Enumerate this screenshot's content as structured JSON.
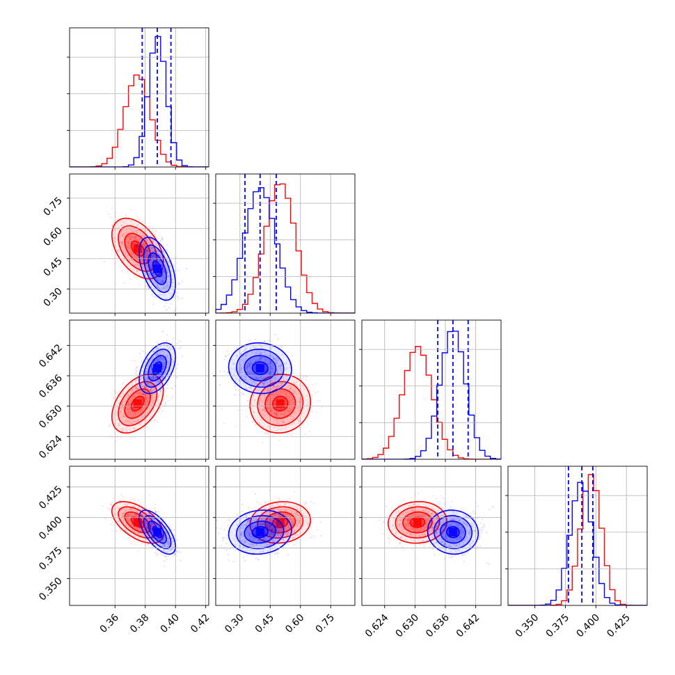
{
  "chart_data": {
    "type": "corner",
    "parameters": [
      "",
      "",
      "",
      ""
    ],
    "ranges": [
      [
        0.33,
        0.422
      ],
      [
        0.18,
        0.87
      ],
      [
        0.6195,
        0.647
      ],
      [
        0.328,
        0.442
      ]
    ],
    "ticks": [
      [
        0.36,
        0.38,
        0.4,
        0.42
      ],
      [
        0.3,
        0.45,
        0.6,
        0.75
      ],
      [
        0.624,
        0.63,
        0.636,
        0.642
      ],
      [
        0.35,
        0.375,
        0.4,
        0.425
      ]
    ],
    "tick_labels": [
      [
        "0.36",
        "0.38",
        "0.40",
        "0.42"
      ],
      [
        "0.30",
        "0.45",
        "0.60",
        "0.75"
      ],
      [
        "0.624",
        "0.630",
        "0.636",
        "0.642"
      ],
      [
        "0.350",
        "0.375",
        "0.400",
        "0.425"
      ]
    ],
    "grid": true,
    "series": [
      {
        "color": "#ff0000",
        "means": [
          0.375,
          0.5,
          0.6305,
          0.396
        ],
        "sigmas": [
          0.0085,
          0.075,
          0.0029,
          0.0085
        ],
        "correlations": [
          [
            0,
            1,
            -0.45
          ],
          [
            0,
            2,
            0.45
          ],
          [
            0,
            3,
            -0.55
          ],
          [
            1,
            2,
            0.05
          ],
          [
            1,
            3,
            0.1
          ],
          [
            2,
            3,
            0.05
          ]
        ]
      },
      {
        "color": "#0000ff",
        "means": [
          0.388,
          0.4,
          0.6375,
          0.388
        ],
        "sigmas": [
          0.006,
          0.078,
          0.0025,
          0.009
        ],
        "correlations": [
          [
            0,
            1,
            -0.5
          ],
          [
            0,
            2,
            0.45
          ],
          [
            0,
            3,
            -0.65
          ],
          [
            1,
            2,
            -0.05
          ],
          [
            1,
            3,
            0.1
          ],
          [
            2,
            3,
            -0.05
          ]
        ]
      }
    ],
    "quantile_lines": {
      "color": "#0000ff",
      "style": "dashed",
      "values": [
        [
          0.378,
          0.388,
          0.397
        ],
        [
          0.325,
          0.4,
          0.48
        ],
        [
          0.6345,
          0.6375,
          0.6405
        ],
        [
          0.3775,
          0.3885,
          0.3975
        ]
      ]
    },
    "contour_levels_sigma": [
      0.5,
      1.0,
      1.5,
      2.0
    ]
  }
}
